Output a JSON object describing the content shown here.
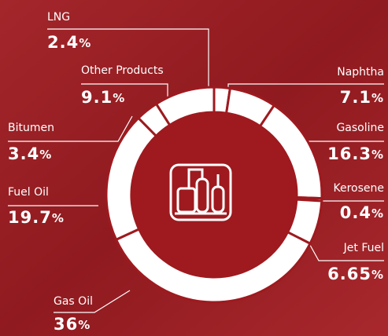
{
  "chart_data": {
    "type": "donut",
    "categories": [
      "LNG",
      "Naphtha",
      "Gasoline",
      "Kerosene",
      "Jet Fuel",
      "Gas Oil",
      "Fuel Oil",
      "Bitumen",
      "Other Products"
    ],
    "values": [
      2.4,
      7.1,
      16.3,
      0.4,
      6.65,
      36,
      19.7,
      3.4,
      9.1
    ],
    "value_labels": [
      "2.4%",
      "7.1%",
      "16.3%",
      "0.4%",
      "6.65%",
      "36%",
      "19.7%",
      "3.4%",
      "9.1%"
    ],
    "color": "#ffffff"
  }
}
